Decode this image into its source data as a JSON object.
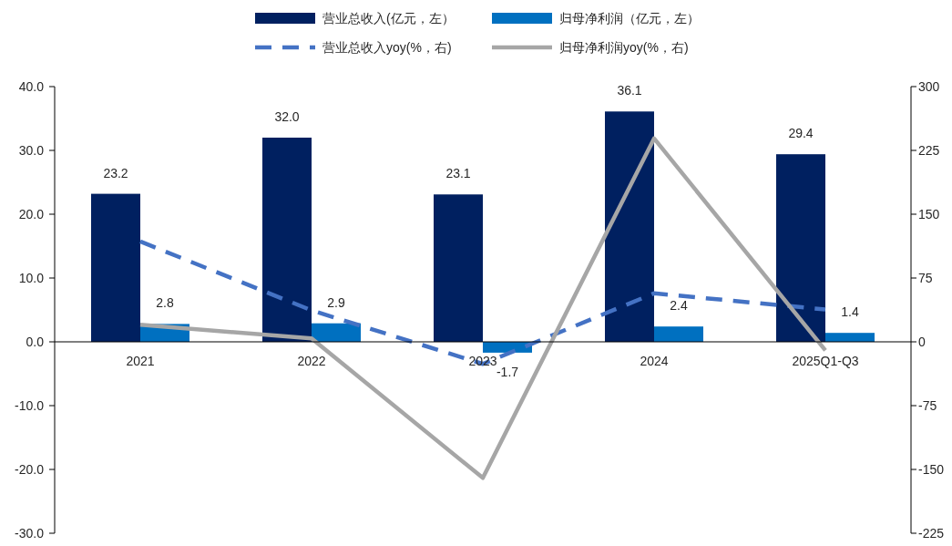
{
  "chart_data": {
    "type": "bar",
    "categories": [
      "2021",
      "2022",
      "2023",
      "2024",
      "2025Q1-Q3"
    ],
    "series": [
      {
        "name": "营业总收入(亿元，左）",
        "color": "#002060",
        "values": [
          23.2,
          32.0,
          23.1,
          36.1,
          29.4
        ],
        "value_labels": [
          "23.2",
          "32.0",
          "23.1",
          "36.1",
          "29.4"
        ]
      },
      {
        "name": "归母净利润（亿元，左）",
        "color": "#0070c0",
        "values": [
          2.8,
          2.9,
          -1.7,
          2.4,
          1.4
        ],
        "value_labels": [
          "2.8",
          "2.9",
          "-1.7",
          "2.4",
          "1.4"
        ]
      },
      {
        "name": "营业总收入yoy(%，右)",
        "type": "line",
        "axis": "y2",
        "color": "#4472c4",
        "line_style": "dashed",
        "values": [
          118,
          37,
          -26,
          57,
          38
        ]
      },
      {
        "name": "归母净利润yoy(%，右)",
        "type": "line",
        "axis": "y2",
        "color": "#a6a6a6",
        "line_style": "solid",
        "values": [
          20,
          4,
          -160,
          239,
          -10
        ]
      }
    ],
    "ylim": [
      -30,
      40
    ],
    "yticks": [
      {
        "value": -30,
        "label": "-30.0"
      },
      {
        "value": -20,
        "label": "-20.0"
      },
      {
        "value": -10,
        "label": "-10.0"
      },
      {
        "value": 0,
        "label": "0.0"
      },
      {
        "value": 10,
        "label": "10.0"
      },
      {
        "value": 20,
        "label": "20.0"
      },
      {
        "value": 30,
        "label": "30.0"
      },
      {
        "value": 40,
        "label": "40.0"
      }
    ],
    "y2lim": [
      -225,
      300
    ],
    "y2ticks": [
      -225,
      -150,
      -75,
      0,
      75,
      150,
      225,
      300
    ],
    "legend": "top",
    "grid": false
  }
}
